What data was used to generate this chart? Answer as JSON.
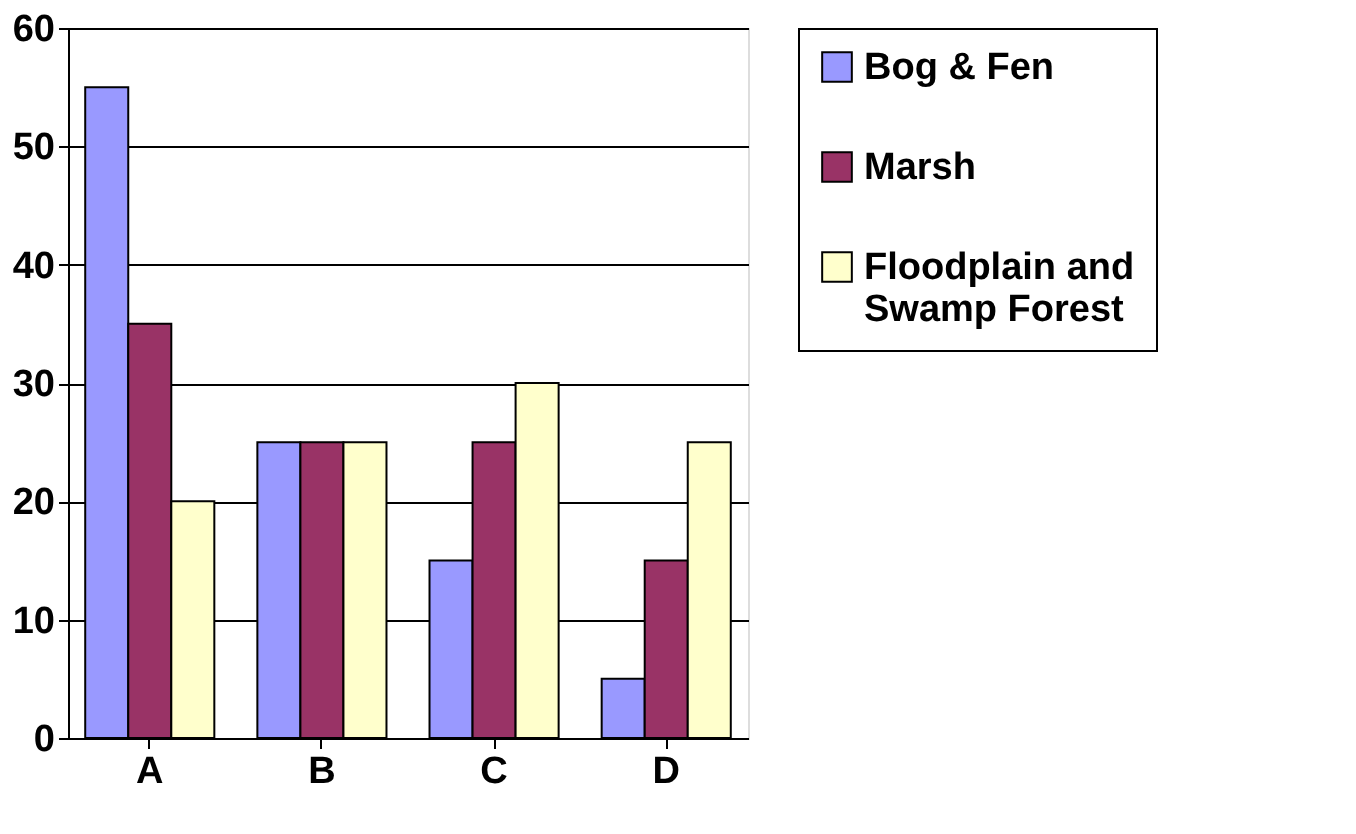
{
  "chart_data": {
    "type": "bar",
    "categories": [
      "A",
      "B",
      "C",
      "D"
    ],
    "series": [
      {
        "name": "Bog & Fen",
        "color": "#9999ff",
        "values": [
          55,
          25,
          15,
          5
        ]
      },
      {
        "name": "Marsh",
        "color": "#993366",
        "values": [
          35,
          25,
          25,
          15
        ]
      },
      {
        "name": "Floodplain and Swamp Forest",
        "color": "#ffffcc",
        "values": [
          20,
          25,
          30,
          25
        ]
      }
    ],
    "ylim": [
      0,
      60
    ],
    "yticks": [
      0,
      10,
      20,
      30,
      40,
      50,
      60
    ],
    "grid": "y",
    "legend": "right"
  }
}
